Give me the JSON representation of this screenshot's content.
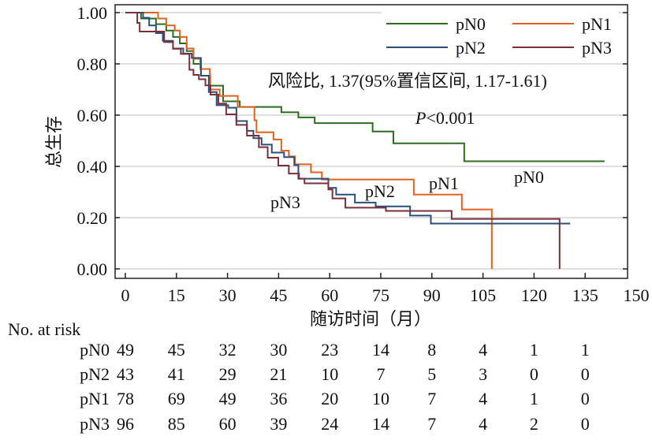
{
  "chart_data": {
    "type": "line",
    "subtype": "kaplan-meier",
    "title": "",
    "xlabel": "随访时间（月）",
    "ylabel": "总生存",
    "xlim": [
      0,
      150
    ],
    "ylim": [
      0,
      1
    ],
    "xticks": [
      "0",
      "15",
      "30",
      "45",
      "60",
      "75",
      "90",
      "105",
      "120",
      "135",
      "150"
    ],
    "yticks": [
      "0.00",
      "0.20",
      "0.40",
      "0.60",
      "0.80",
      "1.00"
    ],
    "grid": true,
    "legend_position": "top-right",
    "annotation_hr": "风险比, 1.37(95%置信区间, 1.17-1.61)",
    "annotation_p_italic": "P",
    "annotation_p_rest": "<0.001",
    "series": [
      {
        "name": "pN0",
        "color": "#2e6b23",
        "label": "pN0",
        "end": 140.7,
        "steps": [
          [
            0,
            1
          ],
          [
            4.6,
            0.977
          ],
          [
            9,
            0.955
          ],
          [
            12,
            0.93
          ],
          [
            14,
            0.905
          ],
          [
            16,
            0.88
          ],
          [
            18,
            0.85
          ],
          [
            20,
            0.8
          ],
          [
            22.2,
            0.754
          ],
          [
            24.9,
            0.715
          ],
          [
            28.7,
            0.654
          ],
          [
            33.6,
            0.632
          ],
          [
            45.8,
            0.611
          ],
          [
            50.8,
            0.591
          ],
          [
            55.6,
            0.569
          ],
          [
            72.6,
            0.536
          ],
          [
            78.7,
            0.49
          ],
          [
            99.5,
            0.42
          ]
        ]
      },
      {
        "name": "pN1",
        "color": "#e0621d",
        "label": "pN1",
        "end": 107.6,
        "steps": [
          [
            0,
            1
          ],
          [
            9.6,
            0.977
          ],
          [
            12,
            0.95
          ],
          [
            14.5,
            0.93
          ],
          [
            16,
            0.905
          ],
          [
            18,
            0.86
          ],
          [
            20,
            0.82
          ],
          [
            22,
            0.78
          ],
          [
            24.8,
            0.7
          ],
          [
            27.7,
            0.675
          ],
          [
            33,
            0.632
          ],
          [
            37.9,
            0.58
          ],
          [
            38.5,
            0.533
          ],
          [
            43.5,
            0.505
          ],
          [
            45.8,
            0.461
          ],
          [
            48,
            0.439
          ],
          [
            49.8,
            0.408
          ],
          [
            54.5,
            0.377
          ],
          [
            57.7,
            0.349
          ],
          [
            84.7,
            0.29
          ],
          [
            98.8,
            0.232
          ],
          [
            107.6,
            0
          ]
        ]
      },
      {
        "name": "pN2",
        "color": "#2a4f7a",
        "label": "pN2",
        "end": 130.6,
        "steps": [
          [
            0,
            1
          ],
          [
            5.2,
            0.98
          ],
          [
            7,
            0.95
          ],
          [
            9,
            0.92
          ],
          [
            11,
            0.89
          ],
          [
            14,
            0.86
          ],
          [
            17,
            0.84
          ],
          [
            19.5,
            0.823
          ],
          [
            22.2,
            0.754
          ],
          [
            24.5,
            0.69
          ],
          [
            26.8,
            0.639
          ],
          [
            30.2,
            0.629
          ],
          [
            32.6,
            0.577
          ],
          [
            35.7,
            0.539
          ],
          [
            37.6,
            0.51
          ],
          [
            40,
            0.485
          ],
          [
            43,
            0.454
          ],
          [
            46.6,
            0.436
          ],
          [
            49.6,
            0.405
          ],
          [
            50.8,
            0.352
          ],
          [
            59.6,
            0.316
          ],
          [
            61.9,
            0.29
          ],
          [
            67.4,
            0.259
          ],
          [
            73.5,
            0.244
          ],
          [
            83.6,
            0.208
          ],
          [
            89.7,
            0.177
          ]
        ]
      },
      {
        "name": "pN3",
        "color": "#7a2f3a",
        "label": "pN3",
        "end": 127.5,
        "steps": [
          [
            0,
            1
          ],
          [
            3.5,
            0.96
          ],
          [
            4.2,
            0.926
          ],
          [
            11.4,
            0.885
          ],
          [
            14,
            0.859
          ],
          [
            16.3,
            0.839
          ],
          [
            18.8,
            0.777
          ],
          [
            20,
            0.757
          ],
          [
            21.6,
            0.74
          ],
          [
            23.5,
            0.716
          ],
          [
            25,
            0.68
          ],
          [
            27.3,
            0.645
          ],
          [
            29.6,
            0.603
          ],
          [
            32.6,
            0.562
          ],
          [
            35.7,
            0.52
          ],
          [
            39.2,
            0.475
          ],
          [
            41.8,
            0.434
          ],
          [
            44.9,
            0.403
          ],
          [
            48,
            0.372
          ],
          [
            51,
            0.352
          ],
          [
            52.6,
            0.334
          ],
          [
            59.6,
            0.31
          ],
          [
            60.8,
            0.275
          ],
          [
            64.6,
            0.239
          ],
          [
            76.5,
            0.226
          ],
          [
            95.8,
            0.195
          ],
          [
            127.5,
            0
          ]
        ]
      }
    ],
    "curve_labels": [
      "pN0",
      "pN1",
      "pN2",
      "pN3"
    ],
    "risk_table": {
      "title": "No. at risk",
      "times": [
        0,
        15,
        30,
        45,
        60,
        75,
        90,
        105,
        120,
        135
      ],
      "rows": [
        {
          "label": "pN0",
          "values": [
            "49",
            "45",
            "32",
            "30",
            "23",
            "14",
            "8",
            "4",
            "1",
            "1"
          ]
        },
        {
          "label": "pN2",
          "values": [
            "43",
            "41",
            "29",
            "21",
            "10",
            "7",
            "5",
            "3",
            "0",
            "0"
          ]
        },
        {
          "label": "pN1",
          "values": [
            "78",
            "69",
            "49",
            "36",
            "20",
            "10",
            "7",
            "4",
            "1",
            "0"
          ]
        },
        {
          "label": "pN3",
          "values": [
            "96",
            "85",
            "60",
            "39",
            "24",
            "14",
            "7",
            "4",
            "2",
            "0"
          ]
        }
      ]
    }
  }
}
